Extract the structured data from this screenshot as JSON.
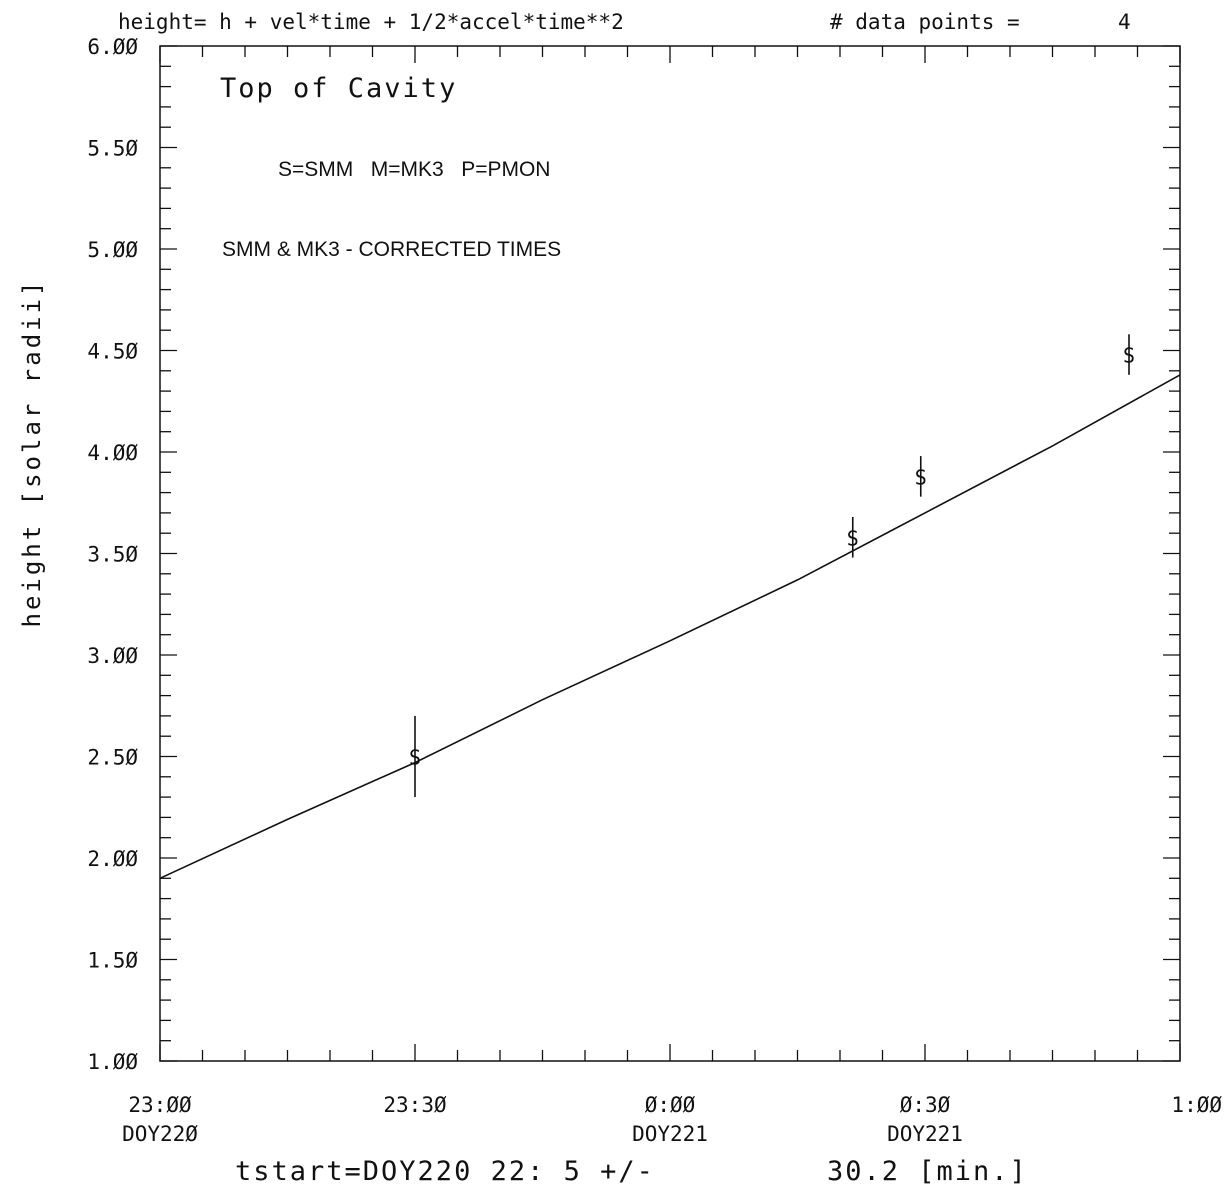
{
  "header": {
    "formula": "height= h + vel*time + 1/2*accel*time**2",
    "data_points_label": "# data points =",
    "data_points_value": "4"
  },
  "annotations": {
    "title": "Top of Cavity",
    "legend": "S=SMM   M=MK3   P=PMON",
    "note": "SMM & MK3 - CORRECTED TIMES"
  },
  "footer": {
    "tstart": "tstart=DOY220 22: 5 +/-",
    "uncertainty": "30.2 [min.]"
  },
  "chart_data": {
    "type": "scatter",
    "title": "Top of Cavity",
    "ylabel": "height [solar radii]",
    "xlabel": "",
    "ylim": [
      1.0,
      6.0
    ],
    "xlim_minutes": [
      0,
      120
    ],
    "y_ticks": [
      "1.ØØ",
      "1.5Ø",
      "2.ØØ",
      "2.5Ø",
      "3.ØØ",
      "3.5Ø",
      "4.ØØ",
      "4.5Ø",
      "5.ØØ",
      "5.5Ø",
      "6.ØØ"
    ],
    "y_tick_values": [
      1.0,
      1.5,
      2.0,
      2.5,
      3.0,
      3.5,
      4.0,
      4.5,
      5.0,
      5.5,
      6.0
    ],
    "x_ticks": [
      {
        "minute": 0,
        "time": "23:ØØ",
        "day": "DOY22Ø"
      },
      {
        "minute": 30,
        "time": "23:3Ø",
        "day": ""
      },
      {
        "minute": 60,
        "time": "Ø:ØØ",
        "day": "DOY221"
      },
      {
        "minute": 90,
        "time": "Ø:3Ø",
        "day": "DOY221"
      },
      {
        "minute": 120,
        "time": "1:ØØ",
        "day": ""
      }
    ],
    "series": [
      {
        "name": "SMM",
        "marker": "S",
        "points": [
          {
            "x": 30,
            "y": 2.5,
            "err": 0.2
          },
          {
            "x": 81.5,
            "y": 3.58,
            "err": 0.1
          },
          {
            "x": 89.5,
            "y": 3.88,
            "err": 0.1
          },
          {
            "x": 114,
            "y": 4.48,
            "err": 0.1
          }
        ]
      }
    ],
    "fit_curve": {
      "x": [
        0,
        15,
        30,
        45,
        60,
        75,
        90,
        105,
        120
      ],
      "y": [
        1.9,
        2.19,
        2.47,
        2.78,
        3.07,
        3.37,
        3.7,
        4.03,
        4.38
      ]
    },
    "grid": false,
    "legend": "top-left"
  }
}
